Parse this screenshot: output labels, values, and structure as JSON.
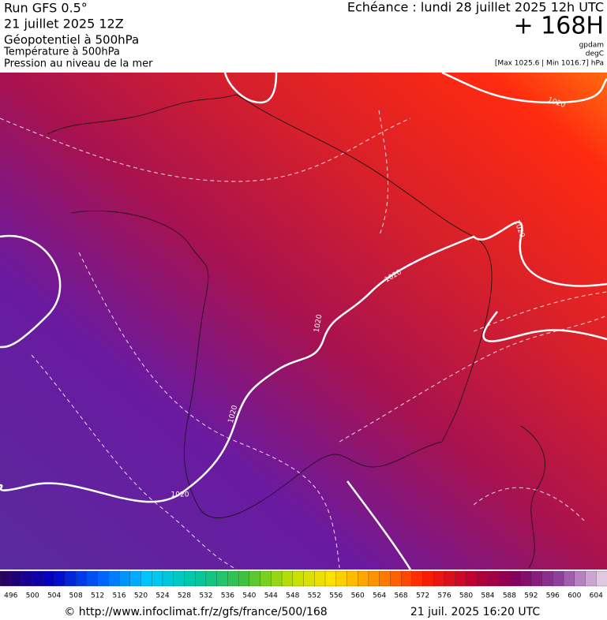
{
  "header": {
    "run": "Run GFS 0.5°",
    "run_date": "21 juillet 2025 12Z",
    "title": "Géopotentiel à 500hPa",
    "subtitle_1": "Température à 500hPa",
    "subtitle_2": "Pression au niveau de la mer",
    "valid_time": "Echéance : lundi 28 juillet 2025 12h UTC",
    "lead_time": "+ 168H",
    "unit_1": "gpdam",
    "unit_2": "degC",
    "pressure_range": "[Max 1025.6 | Min 1016.7] hPa"
  },
  "map": {
    "isobar_labels": [
      "1020",
      "1020",
      "1020",
      "1020",
      "1020",
      "1020"
    ]
  },
  "colorbar": {
    "labels": [
      "496",
      "500",
      "504",
      "508",
      "512",
      "516",
      "520",
      "524",
      "528",
      "532",
      "536",
      "540",
      "544",
      "548",
      "552",
      "556",
      "560",
      "564",
      "568",
      "572",
      "576",
      "580",
      "584",
      "588",
      "592",
      "596",
      "600",
      "604"
    ]
  },
  "footer": {
    "source": "© http://www.infoclimat.fr/z/gfs/france/500/168",
    "generated": "21 juil. 2025 16:20 UTC"
  }
}
